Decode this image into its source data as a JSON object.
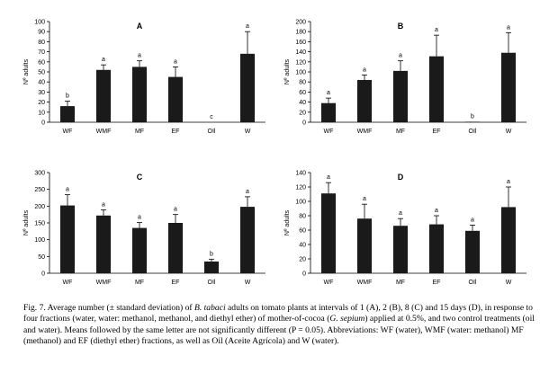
{
  "chart_data": [
    {
      "type": "bar",
      "title": "A",
      "ylabel": "Nº adults",
      "categories": [
        "WF",
        "WMF",
        "MF",
        "EF",
        "OIl",
        "W"
      ],
      "values": [
        16,
        52,
        55,
        45,
        0,
        68
      ],
      "errors": [
        5,
        5,
        6,
        10,
        0,
        22
      ],
      "letters": [
        "b",
        "a",
        "a",
        "a",
        "c",
        "a"
      ],
      "ylim": [
        0,
        100
      ],
      "yticks": [
        "0",
        "10",
        "20",
        "30",
        "40",
        "50",
        "60",
        "70",
        "80",
        "90",
        "100"
      ]
    },
    {
      "type": "bar",
      "title": "B",
      "ylabel": "Nº adults",
      "categories": [
        "WF",
        "WMF",
        "MF",
        "EF",
        "OIl",
        "W"
      ],
      "values": [
        38,
        84,
        102,
        131,
        1,
        138
      ],
      "errors": [
        10,
        10,
        20,
        42,
        0,
        40
      ],
      "letters": [
        "a",
        "a",
        "a",
        "a",
        "b",
        "a"
      ],
      "ylim": [
        0,
        200
      ],
      "yticks": [
        "0",
        "20",
        "40",
        "60",
        "80",
        "100",
        "120",
        "140",
        "160",
        "180",
        "200"
      ]
    },
    {
      "type": "bar",
      "title": "C",
      "ylabel": "Nº adults",
      "categories": [
        "WF",
        "WMF",
        "MF",
        "EF",
        "OIl",
        "W"
      ],
      "values": [
        202,
        172,
        135,
        150,
        35,
        198
      ],
      "errors": [
        32,
        17,
        16,
        25,
        7,
        30
      ],
      "letters": [
        "a",
        "a",
        "a",
        "a",
        "b",
        "a"
      ],
      "ylim": [
        0,
        300
      ],
      "yticks": [
        "0",
        "50",
        "100",
        "150",
        "200",
        "250",
        "300"
      ]
    },
    {
      "type": "bar",
      "title": "D",
      "ylabel": "Nº adults",
      "categories": [
        "WF",
        "WMF",
        "MF",
        "EF",
        "OIl",
        "W"
      ],
      "values": [
        111,
        76,
        66,
        68,
        59,
        92
      ],
      "errors": [
        15,
        20,
        10,
        12,
        8,
        28
      ],
      "letters": [
        "a",
        "a",
        "a",
        "a",
        "a",
        "a"
      ],
      "ylim": [
        0,
        140
      ],
      "yticks": [
        "0",
        "20",
        "40",
        "60",
        "80",
        "100",
        "120",
        "140"
      ]
    }
  ],
  "caption": {
    "part1": "Fig. 7. Average number (± standard deviation) of ",
    "species1": "B. tabaci",
    "part2": " adults on tomato plants at intervals of 1 (A), 2 (B), 8 (C) and 15 days (D), in response to four fractions (water, water: methanol, methanol, and diethyl ether) of mother-of-cocoa (",
    "species2": "G. sepium",
    "part3": ") applied at 0.5%, and two control treatments (oil and water). Means followed by the same letter are not significantly different (P = 0.05). Abbreviations: WF (water), WMF (water: methanol) MF (methanol) and EF (diethyl ether) fractions, as well as Oil (Aceite Agrícola) and W (water)."
  }
}
